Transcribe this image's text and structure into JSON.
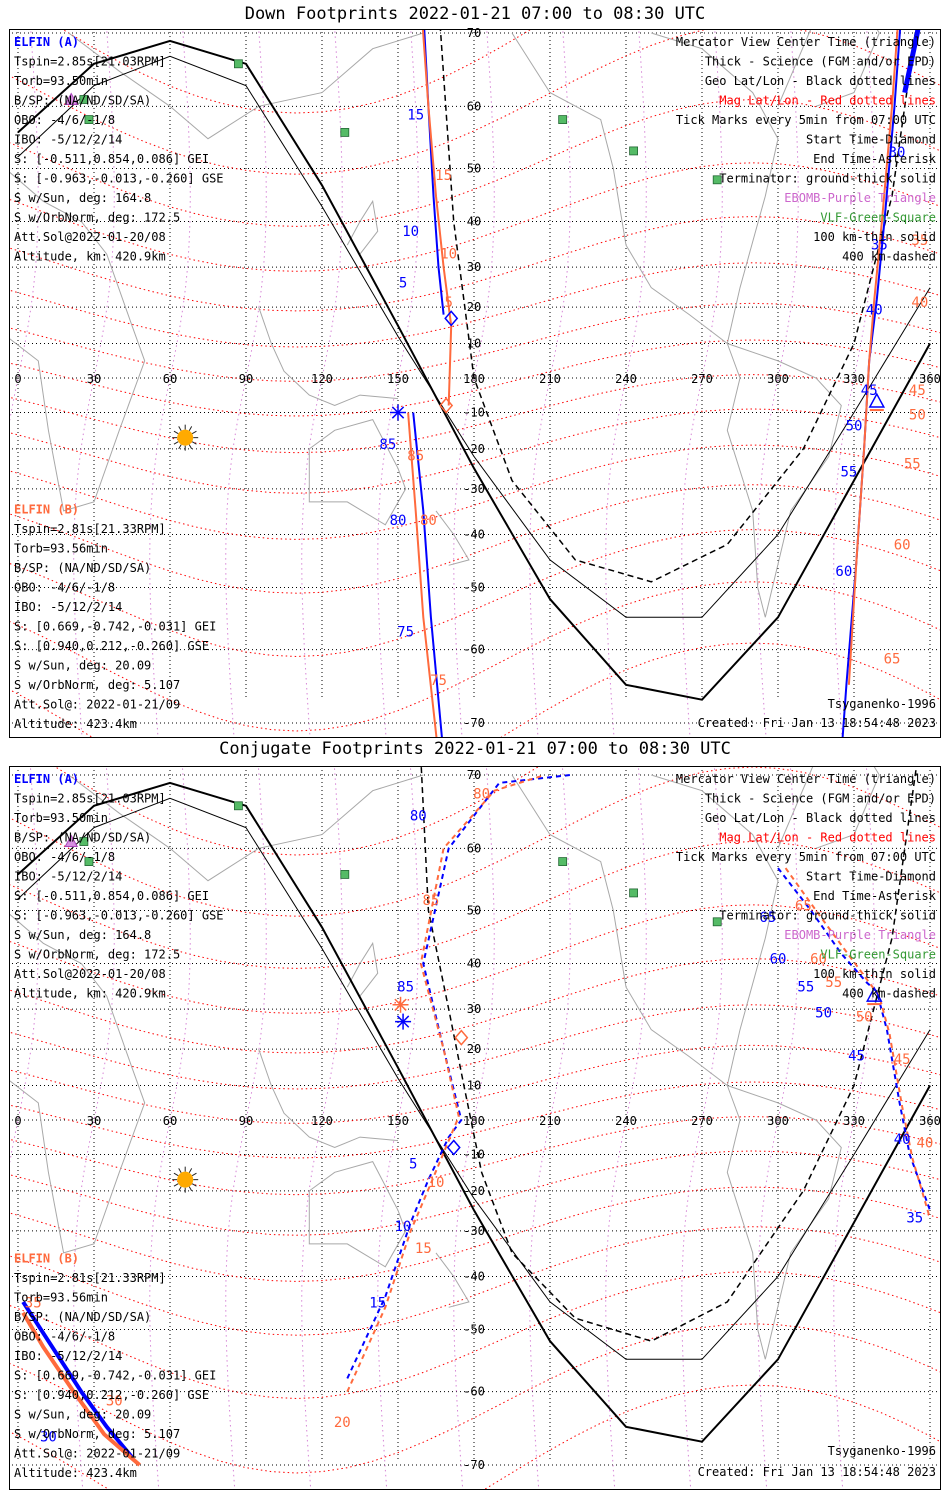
{
  "colors": {
    "elfin_a": "#0000ff",
    "elfin_b": "#ff6a3d",
    "mag_grid": "#ff0000",
    "ebomb": "#cc66cc",
    "vlf": "#339933",
    "geo_grid": "#000000",
    "sun": "#ffaa00"
  },
  "panels": [
    {
      "title": "Down Footprints 2022-01-21 07:00 to 08:30 UTC",
      "elfin_a": {
        "name": "ELFIN (A)",
        "lines": [
          "Tspin=2.85s[21.03RPM]",
          "Torb=93.50min",
          "B/SP: (NA/ND/SD/SA)",
          "OBO: -4/6/-1/8",
          "IBO: -5/12/2/14",
          "S: [-0.511,0.854,0.086] GEI",
          "S: [-0.963,-0.013,-0.260] GSE",
          "S w/Sun, deg: 164.8",
          "S w/OrbNorm, deg: 172.5",
          "Att.Sol@2022-01-20/08",
          "Altitude, km: 420.9km"
        ]
      },
      "elfin_b": {
        "name": "ELFIN (B)",
        "lines": [
          "Tspin=2.81s[21.33RPM]",
          "Torb=93.56min",
          "B/SP: (NA/ND/SD/SA)",
          "OBO: -4/6/-1/8",
          "IBO: -5/12/2/14",
          "S: [0.669,-0.742,-0.031] GEI",
          "S: [0.940,0.212,-0.260] GSE",
          "S w/Sun, deg: 20.09",
          "S w/OrbNorm, deg: 5.107",
          "Att.Sol@: 2022-01-21/09",
          "Altitude: 423.4km"
        ]
      },
      "legend": [
        "Mercator View Center Time (triangle)",
        "Thick - Science (FGM and/or EPD)",
        "Geo Lat/Lon - Black dotted lines",
        "Mag Lat/Lon - Red dotted lines",
        "Tick Marks every 5min from 07:00 UTC",
        "Start Time-Diamond",
        "End Time-Asterisk",
        "Terminator: ground-thick solid",
        "EBOMB-Purple Triangle",
        "VLF-Green-Square",
        "100 km-thin solid",
        "400 km-dashed"
      ],
      "model": "Tsyganenko-1996",
      "created": "Created: Fri Jan 13 18:54:48 2023",
      "lon_ticks": [
        "0",
        "30",
        "60",
        "90",
        "120",
        "150",
        "180",
        "210",
        "240",
        "270",
        "300",
        "330",
        "360"
      ],
      "lat_ticks": [
        "70",
        "60",
        "50",
        "40",
        "30",
        "20",
        "10",
        "-10",
        "-20",
        "-30",
        "-40",
        "-50",
        "-60",
        "-70"
      ],
      "track_a_labels": [
        "5",
        "10",
        "15",
        "25",
        "30",
        "35",
        "40",
        "45",
        "50",
        "55",
        "60",
        "75",
        "80",
        "85"
      ],
      "track_b_labels": [
        "5",
        "10",
        "15",
        "20",
        "35",
        "40",
        "45",
        "50",
        "55",
        "60",
        "65",
        "75",
        "80",
        "85"
      ]
    },
    {
      "title": "Conjugate Footprints 2022-01-21 07:00 to 08:30 UTC",
      "elfin_a": {
        "name": "ELFIN (A)",
        "lines": [
          "Tspin=2.85s[21.03RPM]",
          "Torb=93.50min",
          "B/SP: (NA/ND/SD/SA)",
          "OBO: -4/6/-1/8",
          "IBO: -5/12/2/14",
          "S: [-0.511,0.854,0.086] GEI",
          "S: [-0.963,-0.013,-0.260] GSE",
          "S w/Sun, deg: 164.8",
          "S w/OrbNorm, deg: 172.5",
          "Att.Sol@2022-01-20/08",
          "Altitude, km: 420.9km"
        ]
      },
      "elfin_b": {
        "name": "ELFIN (B)",
        "lines": [
          "Tspin=2.81s[21.33RPM]",
          "Torb=93.56min",
          "B/SP: (NA/ND/SD/SA)",
          "OBO: -4/6/-1/8",
          "IBO: -5/12/2/14",
          "S: [0.669,-0.742,-0.031] GEI",
          "S: [0.940,0.212,-0.260] GSE",
          "S w/Sun, deg: 20.09",
          "S w/OrbNorm, deg: 5.107",
          "Att.Sol@: 2022-01-21/09",
          "Altitude: 423.4km"
        ]
      },
      "legend": [
        "Mercator View Center Time (triangle)",
        "Thick - Science (FGM and/or EPD)",
        "Geo Lat/Lon - Black dotted lines",
        "Mag Lat/Lon - Red dotted lines",
        "Tick Marks every 5min from 07:00 UTC",
        "Start Time-Diamond",
        "End Time-Asterisk",
        "Terminator: ground-thick solid",
        "EBOMB-Purple Triangle",
        "VLF-Green-Square",
        "100 km-thin solid",
        "400 km-dashed"
      ],
      "model": "Tsyganenko-1996",
      "created": "Created: Fri Jan 13 18:54:48 2023",
      "lon_ticks": [
        "0",
        "30",
        "60",
        "90",
        "120",
        "150",
        "180",
        "210",
        "240",
        "270",
        "300",
        "330",
        "360"
      ],
      "lat_ticks": [
        "70",
        "60",
        "50",
        "40",
        "30",
        "20",
        "10",
        "-10",
        "-20",
        "-30",
        "-40",
        "-50",
        "-60",
        "-70"
      ],
      "track_a_labels": [
        "5",
        "10",
        "15",
        "30",
        "35",
        "40",
        "45",
        "50",
        "55",
        "60",
        "65",
        "80",
        "85"
      ],
      "track_b_labels": [
        "10",
        "15",
        "20",
        "30",
        "35",
        "40",
        "45",
        "50",
        "55",
        "60",
        "65",
        "80",
        "85"
      ]
    }
  ],
  "chart_data": [
    {
      "type": "line",
      "title": "Down Footprints 2022-01-21 07:00 to 08:30 UTC",
      "xlim": [
        0,
        360
      ],
      "ylim": [
        -75,
        75
      ],
      "xlabel": "",
      "ylabel": "",
      "grid": true,
      "legend_position": "top-right",
      "terminator": {
        "ground": [
          [
            0,
            56
          ],
          [
            30,
            66
          ],
          [
            60,
            69
          ],
          [
            90,
            66
          ],
          [
            120,
            47
          ],
          [
            150,
            15
          ],
          [
            180,
            -25
          ],
          [
            210,
            -52
          ],
          [
            240,
            -65
          ],
          [
            270,
            -67
          ],
          [
            300,
            -55
          ],
          [
            330,
            -28
          ],
          [
            360,
            10
          ]
        ],
        "km100": [
          [
            0,
            52
          ],
          [
            30,
            63
          ],
          [
            60,
            67
          ],
          [
            90,
            63
          ],
          [
            120,
            43
          ],
          [
            150,
            12
          ],
          [
            180,
            -22
          ],
          [
            210,
            -45
          ],
          [
            240,
            -55
          ],
          [
            270,
            -55
          ],
          [
            300,
            -40
          ],
          [
            330,
            -10
          ],
          [
            360,
            25
          ]
        ],
        "km400": [
          [
            165,
            78
          ],
          [
            172,
            40
          ],
          [
            180,
            0
          ],
          [
            195,
            -28
          ],
          [
            220,
            -45
          ],
          [
            250,
            -49
          ],
          [
            280,
            -42
          ],
          [
            310,
            -20
          ],
          [
            330,
            10
          ],
          [
            345,
            45
          ],
          [
            358,
            78
          ]
        ]
      },
      "series": [
        {
          "name": "ELFIN (A)",
          "points": [
            [
              156,
              -10
            ],
            [
              160,
              -35
            ],
            [
              163,
              -55
            ],
            [
              168,
              -74
            ]
          ],
          "points_2": [
            [
              168,
              18
            ],
            [
              166,
              30
            ],
            [
              164,
              45
            ],
            [
              162,
              60
            ],
            [
              159,
              78
            ]
          ],
          "points_3": [
            [
              350,
              78
            ],
            [
              346,
              60
            ],
            [
              342,
              40
            ],
            [
              339,
              22
            ],
            [
              336,
              5
            ],
            [
              334,
              -20
            ],
            [
              331,
              -45
            ],
            [
              327,
              -65
            ],
            [
              325,
              -74
            ]
          ]
        },
        {
          "name": "ELFIN (B)",
          "points": [
            [
              154,
              -10
            ],
            [
              157,
              -35
            ],
            [
              160,
              -55
            ],
            [
              166,
              -74
            ]
          ],
          "points_2": [
            [
              170,
              -8
            ],
            [
              171,
              15
            ],
            [
              168,
              30
            ],
            [
              165,
              45
            ],
            [
              162,
              60
            ],
            [
              158,
              78
            ]
          ],
          "points_3": [
            [
              349,
              78
            ],
            [
              345,
              60
            ],
            [
              341,
              40
            ],
            [
              338,
              22
            ],
            [
              336,
              5
            ],
            [
              334,
              -20
            ],
            [
              331,
              -45
            ],
            [
              328,
              -65
            ]
          ]
        }
      ],
      "markers": {
        "start_a": [
          171,
          17
        ],
        "start_b": [
          169,
          -8
        ],
        "end_a": [
          150,
          -10
        ],
        "center_a": [
          339,
          -7
        ],
        "sun": [
          66,
          -17
        ]
      },
      "vlf_sites": [
        [
          87,
          66
        ],
        [
          26,
          61
        ],
        [
          28,
          58
        ],
        [
          129,
          56
        ],
        [
          215,
          58
        ],
        [
          243,
          53
        ],
        [
          276,
          48
        ]
      ],
      "ebomb_sites": [
        [
          21,
          61
        ]
      ]
    },
    {
      "type": "line",
      "title": "Conjugate Footprints 2022-01-21 07:00 to 08:30 UTC",
      "xlim": [
        0,
        360
      ],
      "ylim": [
        -75,
        75
      ],
      "xlabel": "",
      "ylabel": "",
      "grid": true,
      "legend_position": "top-right",
      "terminator": {
        "ground": [
          [
            0,
            56
          ],
          [
            30,
            66
          ],
          [
            60,
            69
          ],
          [
            90,
            66
          ],
          [
            120,
            47
          ],
          [
            150,
            15
          ],
          [
            180,
            -25
          ],
          [
            210,
            -52
          ],
          [
            240,
            -65
          ],
          [
            270,
            -67
          ],
          [
            300,
            -55
          ],
          [
            330,
            -28
          ],
          [
            360,
            10
          ]
        ],
        "km100": [
          [
            0,
            52
          ],
          [
            30,
            63
          ],
          [
            60,
            67
          ],
          [
            90,
            63
          ],
          [
            120,
            43
          ],
          [
            150,
            12
          ],
          [
            180,
            -22
          ],
          [
            210,
            -45
          ],
          [
            240,
            -55
          ],
          [
            270,
            -55
          ],
          [
            300,
            -40
          ],
          [
            330,
            -10
          ],
          [
            360,
            25
          ]
        ],
        "km400": [
          [
            158,
            78
          ],
          [
            162,
            50
          ],
          [
            170,
            30
          ],
          [
            176,
            10
          ],
          [
            183,
            -15
          ],
          [
            195,
            -35
          ],
          [
            220,
            -48
          ],
          [
            250,
            -52
          ],
          [
            280,
            -45
          ],
          [
            310,
            -20
          ],
          [
            330,
            10
          ],
          [
            345,
            45
          ],
          [
            358,
            78
          ]
        ]
      },
      "series": [
        {
          "name": "ELFIN (A)",
          "points": [
            [
              130,
              -58
            ],
            [
              145,
              -44
            ],
            [
              155,
              -28
            ],
            [
              162,
              -17
            ],
            [
              170,
              -5
            ],
            [
              175,
              0
            ],
            [
              168,
              20
            ],
            [
              160,
              40
            ],
            [
              170,
              60
            ],
            [
              190,
              69
            ],
            [
              218,
              70
            ]
          ],
          "points_2": [
            [
              300,
              57
            ],
            [
              313,
              50
            ],
            [
              325,
              42
            ],
            [
              335,
              36
            ],
            [
              339,
              34
            ],
            [
              343,
              25
            ],
            [
              348,
              5
            ],
            [
              352,
              -10
            ],
            [
              360,
              -25
            ]
          ],
          "points_3": [
            [
              2,
              -45
            ],
            [
              12,
              -52
            ],
            [
              25,
              -60
            ],
            [
              35,
              -65
            ],
            [
              45,
              -69
            ]
          ]
        },
        {
          "name": "ELFIN (B)",
          "points": [
            [
              130,
              -60
            ],
            [
              145,
              -46
            ],
            [
              155,
              -30
            ],
            [
              163,
              -18
            ],
            [
              170,
              -6
            ],
            [
              174,
              1
            ],
            [
              168,
              20
            ],
            [
              159,
              40
            ],
            [
              168,
              60
            ],
            [
              188,
              68
            ],
            [
              208,
              70
            ]
          ],
          "points_2": [
            [
              303,
              57
            ],
            [
              315,
              50
            ],
            [
              326,
              43
            ],
            [
              336,
              36
            ],
            [
              340,
              33
            ],
            [
              344,
              24
            ],
            [
              349,
              4
            ],
            [
              353,
              -11
            ],
            [
              360,
              -27
            ]
          ],
          "points_3": [
            [
              2,
              -47
            ],
            [
              10,
              -53
            ],
            [
              22,
              -60
            ],
            [
              34,
              -66
            ],
            [
              48,
              -70
            ]
          ]
        }
      ],
      "markers": {
        "start_a": [
          172,
          -8
        ],
        "start_b": [
          175,
          23
        ],
        "end_a": [
          152,
          27
        ],
        "end_b": [
          151,
          31
        ],
        "center_a": [
          338,
          33
        ],
        "sun": [
          66,
          -17
        ]
      },
      "vlf_sites": [
        [
          87,
          66
        ],
        [
          26,
          61
        ],
        [
          28,
          58
        ],
        [
          129,
          56
        ],
        [
          215,
          58
        ],
        [
          243,
          53
        ],
        [
          276,
          48
        ]
      ],
      "ebomb_sites": [
        [
          21,
          61
        ]
      ]
    }
  ]
}
